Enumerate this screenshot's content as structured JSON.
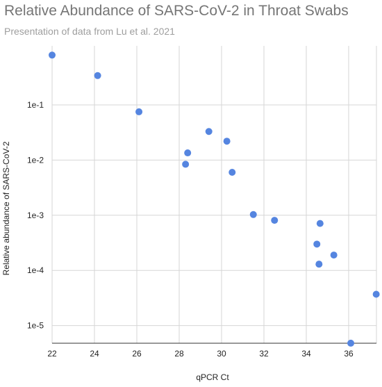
{
  "chart_data": {
    "type": "scatter",
    "title": "Relative Abundance of SARS-CoV-2 in Throat Swabs",
    "subtitle": "Presentation of data from Lu et al. 2021",
    "xlabel": "qPCR Ct",
    "ylabel": "Relative abundance of SARS-CoV-2",
    "x_scale": "linear",
    "y_scale": "log",
    "xlim": [
      22,
      37.3
    ],
    "ylim": [
      5e-06,
      1
    ],
    "x_ticks": [
      {
        "value": 22,
        "label": "22"
      },
      {
        "value": 24,
        "label": "24"
      },
      {
        "value": 26,
        "label": "26"
      },
      {
        "value": 28,
        "label": "28"
      },
      {
        "value": 30,
        "label": "30"
      },
      {
        "value": 32,
        "label": "32"
      },
      {
        "value": 34,
        "label": "34"
      },
      {
        "value": 36,
        "label": "36"
      }
    ],
    "y_ticks": [
      {
        "value": 0.1,
        "label": "1e-1"
      },
      {
        "value": 0.01,
        "label": "1e-2"
      },
      {
        "value": 0.001,
        "label": "1e-3"
      },
      {
        "value": 0.0001,
        "label": "1e-4"
      },
      {
        "value": 1e-05,
        "label": "1e-5"
      }
    ],
    "grid": true,
    "series": [
      {
        "color": "#5585e0",
        "points": [
          {
            "x": 22.0,
            "y": 0.8
          },
          {
            "x": 24.15,
            "y": 0.34
          },
          {
            "x": 26.1,
            "y": 0.075
          },
          {
            "x": 28.3,
            "y": 0.0084
          },
          {
            "x": 28.4,
            "y": 0.0135
          },
          {
            "x": 29.4,
            "y": 0.033
          },
          {
            "x": 30.25,
            "y": 0.022
          },
          {
            "x": 30.5,
            "y": 0.006
          },
          {
            "x": 31.5,
            "y": 0.00103
          },
          {
            "x": 32.5,
            "y": 0.00081
          },
          {
            "x": 34.5,
            "y": 0.0003
          },
          {
            "x": 34.6,
            "y": 0.00013
          },
          {
            "x": 34.65,
            "y": 0.00071
          },
          {
            "x": 35.3,
            "y": 0.00019
          },
          {
            "x": 36.1,
            "y": 4.8e-06
          },
          {
            "x": 37.3,
            "y": 3.7e-05
          }
        ]
      }
    ]
  }
}
